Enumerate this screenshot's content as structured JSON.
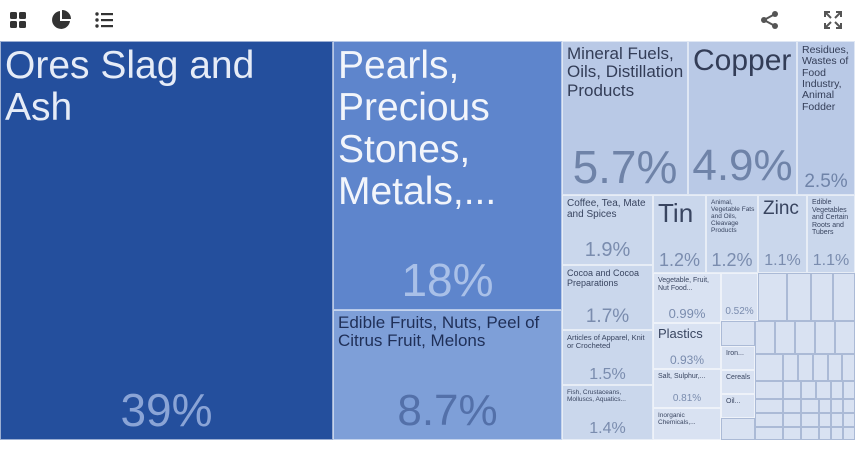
{
  "toolbar": {
    "left_icons": [
      "grid-icon",
      "pie-chart-icon",
      "list-icon"
    ],
    "right_icons": [
      "share-icon",
      "fullscreen-icon"
    ]
  },
  "colors": {
    "dark": "#244f9d",
    "mid": "#5e85cc",
    "light": "#7e9fd8",
    "pale": "#b9c9e6",
    "lighter": "#cad7ec",
    "lightest": "#d9e2f2"
  },
  "chart_data": {
    "type": "treemap",
    "title": "",
    "items": [
      {
        "label": "Ores Slag and Ash",
        "value": 39,
        "pct_label": "39%"
      },
      {
        "label": "Pearls, Precious Stones, Metals,...",
        "value": 18,
        "pct_label": "18%"
      },
      {
        "label": "Edible Fruits, Nuts, Peel of Citrus Fruit, Melons",
        "value": 8.7,
        "pct_label": "8.7%"
      },
      {
        "label": "Mineral Fuels, Oils, Distillation Products",
        "value": 5.7,
        "pct_label": "5.7%"
      },
      {
        "label": "Copper",
        "value": 4.9,
        "pct_label": "4.9%"
      },
      {
        "label": "Residues, Wastes of Food Industry, Animal Fodder",
        "value": 2.5,
        "pct_label": "2.5%"
      },
      {
        "label": "Coffee, Tea, Mate and Spices",
        "value": 1.9,
        "pct_label": "1.9%"
      },
      {
        "label": "Tin",
        "value": 1.2,
        "pct_label": "1.2%"
      },
      {
        "label": "Animal, Vegetable Fats and Oils, Cleavage Products",
        "value": 1.2,
        "pct_label": "1.2%"
      },
      {
        "label": "Zinc",
        "value": 1.1,
        "pct_label": "1.1%"
      },
      {
        "label": "Edible Vegetables and Certain Roots and Tubers",
        "value": 1.1,
        "pct_label": "1.1%"
      },
      {
        "label": "Cocoa and Cocoa Preparations",
        "value": 1.7,
        "pct_label": "1.7%"
      },
      {
        "label": "Articles of Apparel, Knit or Crocheted",
        "value": 1.5,
        "pct_label": "1.5%"
      },
      {
        "label": "Fish, Crustaceans, Molluscs, Aquatics...",
        "value": 1.4,
        "pct_label": "1.4%"
      },
      {
        "label": "Vegetable, Fruit, Nut Food...",
        "value": 0.99,
        "pct_label": "0.99%"
      },
      {
        "label": "",
        "value": 0.52,
        "pct_label": "0.52%"
      },
      {
        "label": "Plastics",
        "value": 0.93,
        "pct_label": "0.93%"
      },
      {
        "label": "Salt, Sulphur,...",
        "value": 0.81,
        "pct_label": "0.81%"
      },
      {
        "label": "Inorganic Chemicals,...",
        "value": null,
        "pct_label": ""
      },
      {
        "label": "Iron...",
        "value": null,
        "pct_label": ""
      },
      {
        "label": "Cereals",
        "value": null,
        "pct_label": ""
      },
      {
        "label": "Oil...",
        "value": null,
        "pct_label": ""
      }
    ]
  }
}
